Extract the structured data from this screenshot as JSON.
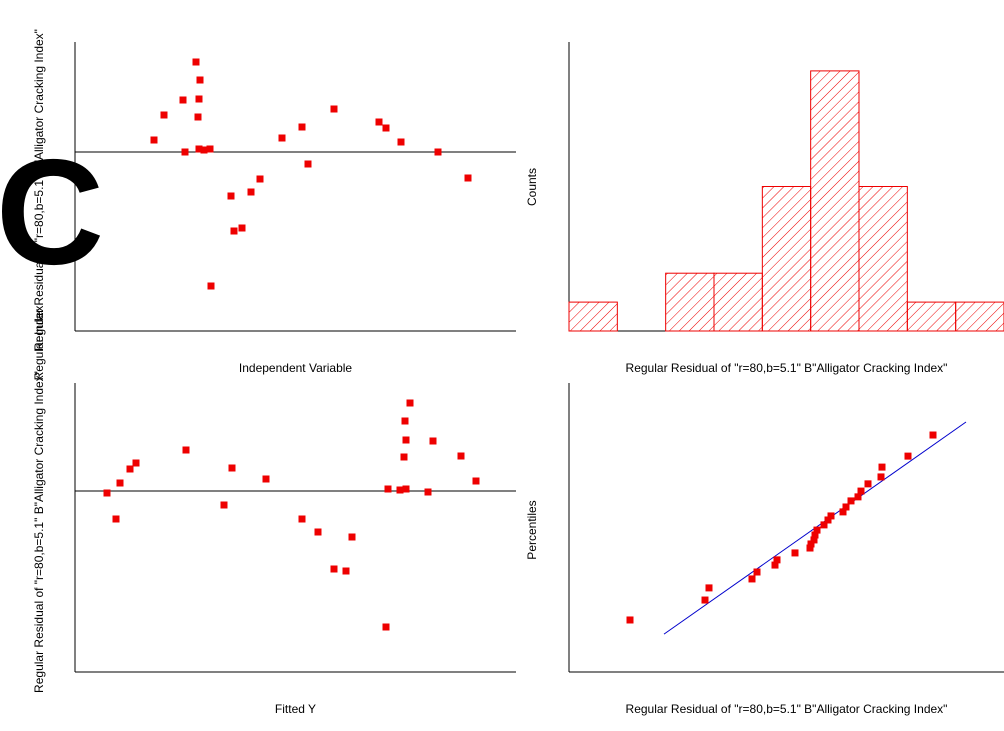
{
  "overlay_glyph": "C",
  "chart_data": [
    {
      "type": "scatter",
      "ylabel": "Regular Residual of \"r=80,b=5.1\" B\"Alligator Cracking Index\"",
      "overlap_label": "Regular Index",
      "xlabel": "Independent Variable",
      "xlim": [
        0,
        4.41
      ],
      "ylim": [
        -1.79,
        1.1
      ],
      "zero_line": true,
      "color": "#ee0000",
      "x": [
        0.79,
        0.89,
        1.08,
        1.21,
        1.25,
        1.24,
        1.23,
        1.1,
        1.24,
        1.29,
        1.35,
        1.36,
        1.56,
        1.59,
        1.67,
        1.76,
        1.85,
        2.07,
        2.27,
        2.33,
        2.59,
        3.04,
        3.11,
        3.26,
        3.63,
        3.93
      ],
      "values": [
        0.12,
        0.37,
        0.52,
        0.9,
        0.72,
        0.53,
        0.35,
        0.0,
        0.03,
        0.02,
        0.03,
        -1.34,
        -0.44,
        -0.79,
        -0.76,
        -0.4,
        -0.27,
        0.14,
        0.25,
        -0.12,
        0.43,
        0.3,
        0.24,
        0.1,
        0.0,
        -0.26
      ]
    },
    {
      "type": "histogram",
      "ylabel": "Counts",
      "xlabel": "Regular Residual of \"r=80,b=5.1\" B\"Alligator Cracking Index\"",
      "xlim": [
        -1.5,
        1.2
      ],
      "ylim": [
        0,
        10
      ],
      "color": "#ee0000",
      "bins": [
        -1.5,
        -1.2,
        -0.9,
        -0.6,
        -0.3,
        0,
        0.3,
        0.6,
        0.9,
        1.2
      ],
      "values": [
        1,
        0,
        2,
        2,
        5,
        9,
        5,
        1,
        1
      ]
    },
    {
      "type": "scatter",
      "ylabel": "Regular Residual of \"r=80,b=5.1\" B\"Alligator Cracking Index\"",
      "xlabel": "Fitted Y",
      "xlim": [
        0,
        4.41
      ],
      "ylim": [
        -1.81,
        1.08
      ],
      "zero_line": true,
      "color": "#ee0000",
      "x": [
        0.32,
        0.41,
        0.45,
        0.55,
        0.61,
        1.11,
        1.49,
        1.57,
        1.91,
        2.27,
        2.43,
        2.59,
        2.71,
        2.77,
        3.11,
        3.13,
        3.25,
        3.31,
        3.29,
        3.31,
        3.3,
        3.35,
        3.53,
        3.58,
        3.86,
        4.01
      ],
      "values": [
        -0.02,
        -0.28,
        0.08,
        0.22,
        0.28,
        0.41,
        -0.14,
        0.23,
        0.12,
        -0.28,
        -0.41,
        -0.78,
        -0.8,
        -0.46,
        -1.36,
        0.02,
        0.01,
        0.02,
        0.34,
        0.51,
        0.7,
        0.88,
        -0.01,
        0.5,
        0.35,
        0.1
      ]
    },
    {
      "type": "scatter",
      "ylabel": "Percentiles",
      "xlabel": "Regular Residual of \"r=80,b=5.1\" B\"Alligator Cracking Index\"",
      "xlim": [
        -2.0,
        2.35
      ],
      "ylim": [
        0,
        100
      ],
      "color": "#ee0000",
      "x": [
        -1.39,
        -0.64,
        -0.6,
        -0.17,
        -0.12,
        0.06,
        0.08,
        0.26,
        0.41,
        0.42,
        0.45,
        0.46,
        0.48,
        0.55,
        0.59,
        0.62,
        0.74,
        0.77,
        0.82,
        0.89,
        0.92,
        0.99,
        1.12,
        1.13,
        1.39,
        1.64
      ],
      "values": [
        18.0,
        24.9,
        29.1,
        32.2,
        34.6,
        37.0,
        38.8,
        41.2,
        42.9,
        44.3,
        45.7,
        47.4,
        49.1,
        50.9,
        52.6,
        54.0,
        55.4,
        57.1,
        59.2,
        60.6,
        62.6,
        65.1,
        67.5,
        70.9,
        74.7,
        82.0
      ],
      "fit_line": {
        "x": [
          -1.05,
          1.97
        ],
        "values": [
          13.1,
          86.5
        ],
        "color": "#0000cc"
      }
    }
  ]
}
